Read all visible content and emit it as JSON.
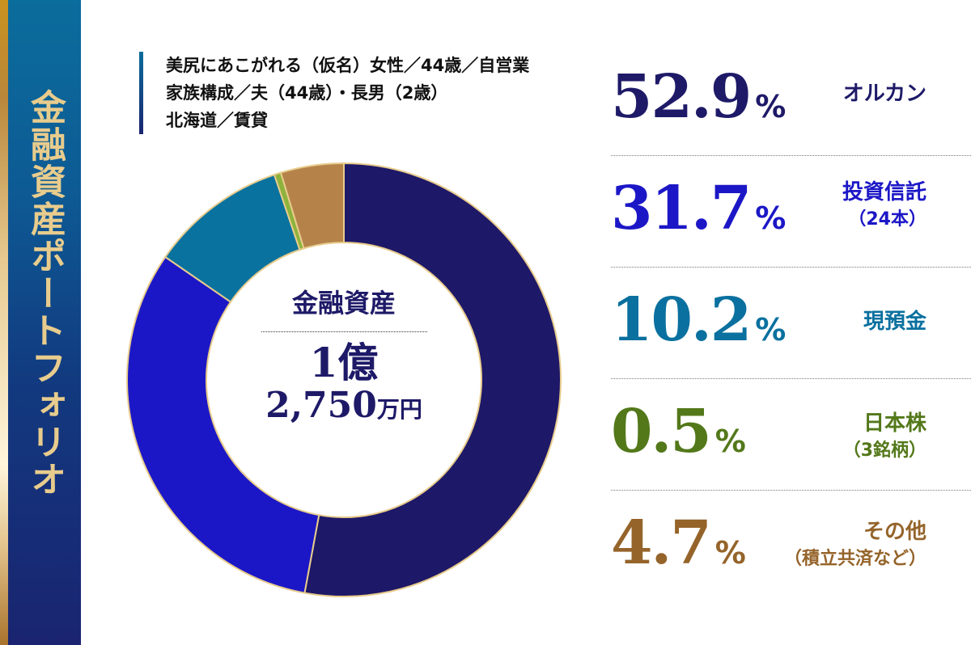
{
  "sidebar": {
    "title": "金融資産ポートフォリオ"
  },
  "profile": {
    "lines": [
      "美尻にあこがれる（仮名）女性／44歳／自営業",
      "家族構成／夫（44歳）・長男（2歳）",
      "北海道／賃貸"
    ]
  },
  "center": {
    "label": "金融資産",
    "value_line1": "1億",
    "value_line2_num": "2,750",
    "value_line2_unit": "万円"
  },
  "legend": [
    {
      "value": "52.9",
      "sign": "%",
      "label": "オルカン",
      "sub": "",
      "color": "#1e1a68"
    },
    {
      "value": "31.7",
      "sign": "%",
      "label": "投資信託",
      "sub": "（24本）",
      "color": "#1c17c6"
    },
    {
      "value": "10.2",
      "sign": "%",
      "label": "現預金",
      "sub": "",
      "color": "#0a709f"
    },
    {
      "value": "0.5",
      "sign": "%",
      "label": "日本株",
      "sub": "（3銘柄）",
      "color": "#53781a"
    },
    {
      "value": "4.7",
      "sign": "%",
      "label": "その他",
      "sub": "（積立共済など）",
      "color": "#95642a"
    }
  ],
  "chart_data": {
    "type": "pie",
    "donut": true,
    "title": "金融資産ポートフォリオ",
    "center_text": "金融資産 1億2,750万円",
    "categories": [
      "オルカン",
      "投資信託（24本）",
      "現預金",
      "日本株（3銘柄）",
      "その他（積立共済など）"
    ],
    "values": [
      52.9,
      31.7,
      10.2,
      0.5,
      4.7
    ],
    "unit": "%",
    "colors": [
      "#1e1868",
      "#1c17c6",
      "#0a729f",
      "#8db33c",
      "#b5834a"
    ],
    "separator_color": "#e8cc8d",
    "start_angle": "12 o'clock, clockwise"
  }
}
